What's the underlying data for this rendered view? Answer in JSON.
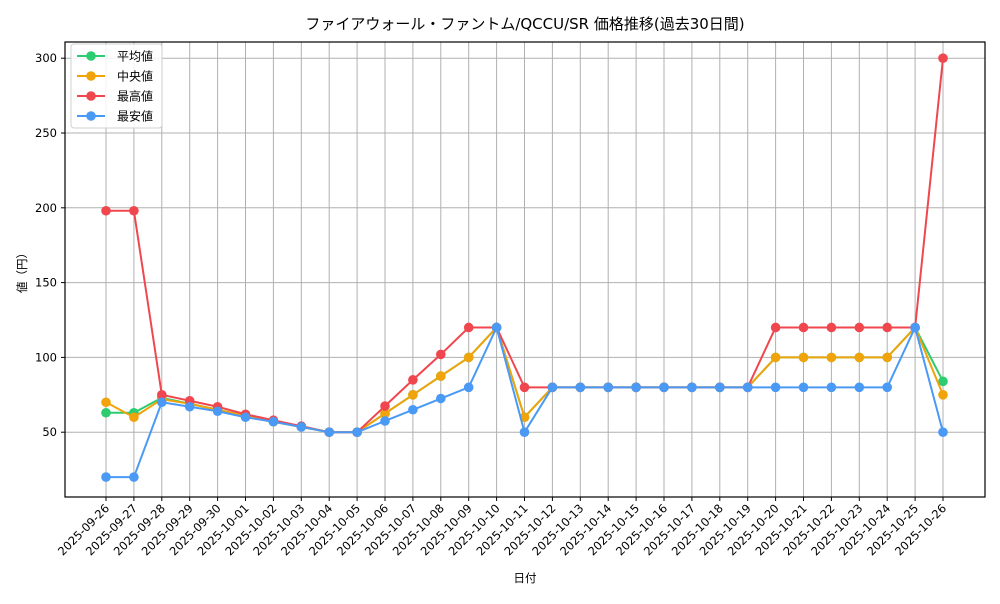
{
  "chart_data": {
    "type": "line",
    "title": "ファイアウォール・ファントム/QCCU/SR 価格推移(過去30日間)",
    "xlabel": "日付",
    "ylabel": "値（円）",
    "ylim": [
      15,
      315
    ],
    "yticks": [
      50,
      100,
      150,
      200,
      250,
      300
    ],
    "grid": true,
    "legend_position": "upper left",
    "categories": [
      "2025-09-26",
      "2025-09-27",
      "2025-09-28",
      "2025-09-29",
      "2025-09-30",
      "2025-10-01",
      "2025-10-02",
      "2025-10-03",
      "2025-10-04",
      "2025-10-05",
      "2025-10-06",
      "2025-10-07",
      "2025-10-08",
      "2025-10-09",
      "2025-10-10",
      "2025-10-11",
      "2025-10-12",
      "2025-10-13",
      "2025-10-14",
      "2025-10-15",
      "2025-10-16",
      "2025-10-17",
      "2025-10-18",
      "2025-10-19",
      "2025-10-20",
      "2025-10-21",
      "2025-10-22",
      "2025-10-23",
      "2025-10-24",
      "2025-10-25",
      "2025-10-26"
    ],
    "series": [
      {
        "name": "平均値",
        "color": "#2ecc71",
        "values": [
          63,
          63,
          73,
          69,
          65,
          61,
          57,
          54,
          50,
          50,
          62.5,
          75,
          87.5,
          100,
          120,
          60,
          80,
          80,
          80,
          80,
          80,
          80,
          80,
          80,
          100,
          100,
          100,
          100,
          100,
          120,
          84
        ]
      },
      {
        "name": "中央値",
        "color": "#f0a30a",
        "values": [
          70,
          60,
          72,
          69,
          65,
          61,
          57,
          53.5,
          50,
          50,
          62.5,
          75,
          87.5,
          100,
          120,
          60,
          80,
          80,
          80,
          80,
          80,
          80,
          80,
          80,
          100,
          100,
          100,
          100,
          100,
          120,
          75
        ]
      },
      {
        "name": "最高値",
        "color": "#f0474f",
        "values": [
          198,
          198,
          75,
          71,
          67,
          62,
          58,
          54,
          50,
          50,
          67.5,
          85,
          102,
          120,
          120,
          80,
          80,
          80,
          80,
          80,
          80,
          80,
          80,
          80,
          120,
          120,
          120,
          120,
          120,
          120,
          300
        ]
      },
      {
        "name": "最安値",
        "color": "#4a9af5",
        "values": [
          20,
          20,
          70,
          67,
          64,
          60,
          57,
          53.5,
          50,
          50,
          57.5,
          65,
          72.5,
          80,
          120,
          50,
          80,
          80,
          80,
          80,
          80,
          80,
          80,
          80,
          80,
          80,
          80,
          80,
          80,
          120,
          50
        ]
      }
    ]
  }
}
